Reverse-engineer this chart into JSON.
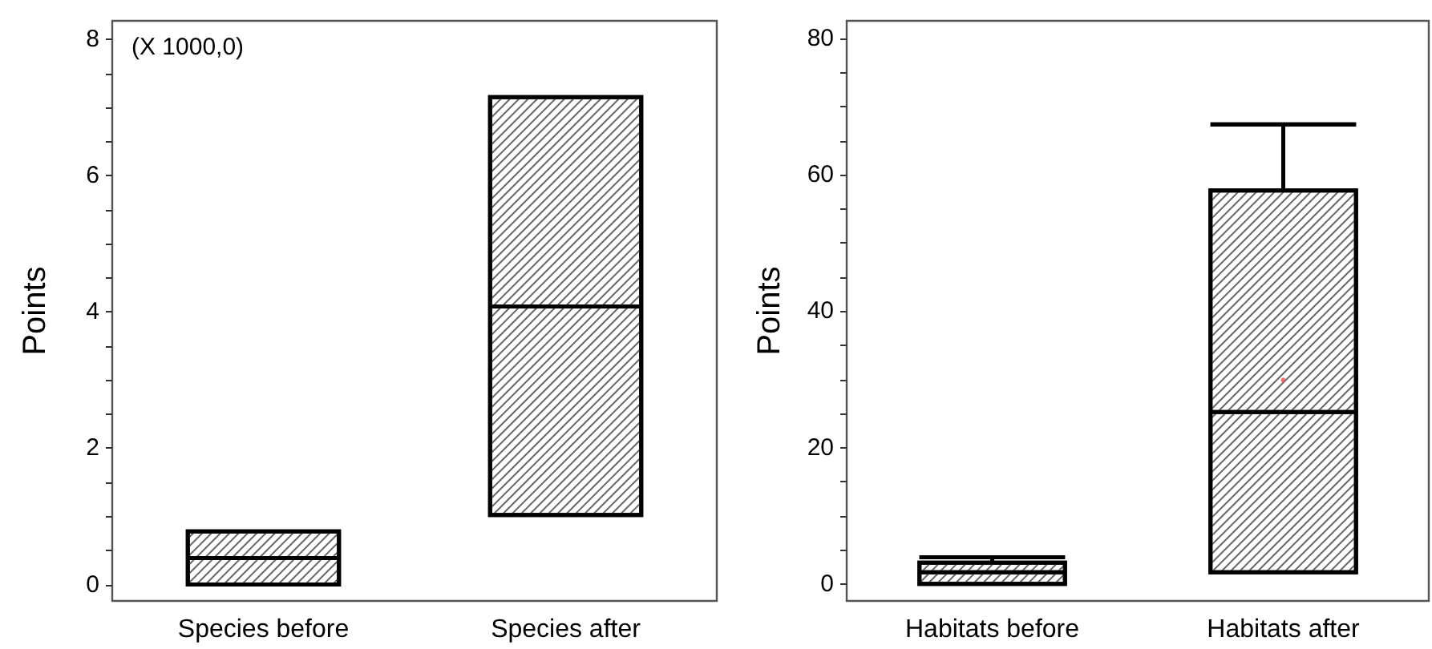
{
  "chart_data": [
    {
      "type": "box",
      "ylabel": "Points",
      "categories": [
        "Species before",
        "Species after"
      ],
      "boxes": [
        {
          "low": 0,
          "q1": 0,
          "median": 0.39,
          "q3": 0.78,
          "high": 0.78
        },
        {
          "low": 1.02,
          "q1": 1.02,
          "median": 4.08,
          "q3": 7.15,
          "high": 7.15
        }
      ],
      "ylim": [
        -0.24,
        8.27
      ],
      "yticks": [
        0,
        2,
        4,
        6,
        8
      ],
      "annotations": [
        "(X 1000,0)"
      ]
    },
    {
      "type": "box",
      "ylabel": "Points",
      "categories": [
        "Habitats before",
        "Habitats after"
      ],
      "boxes": [
        {
          "low": 0,
          "q1": 0,
          "median": 1.7,
          "q3": 3.1,
          "high": 3.9
        },
        {
          "low": 1.7,
          "q1": 1.7,
          "median": 25.2,
          "q3": 57.7,
          "high": 67.4,
          "mean": 29.9
        }
      ],
      "ylim": [
        -2.5,
        82.6
      ],
      "yticks": [
        0,
        20,
        40,
        60,
        80
      ]
    }
  ]
}
